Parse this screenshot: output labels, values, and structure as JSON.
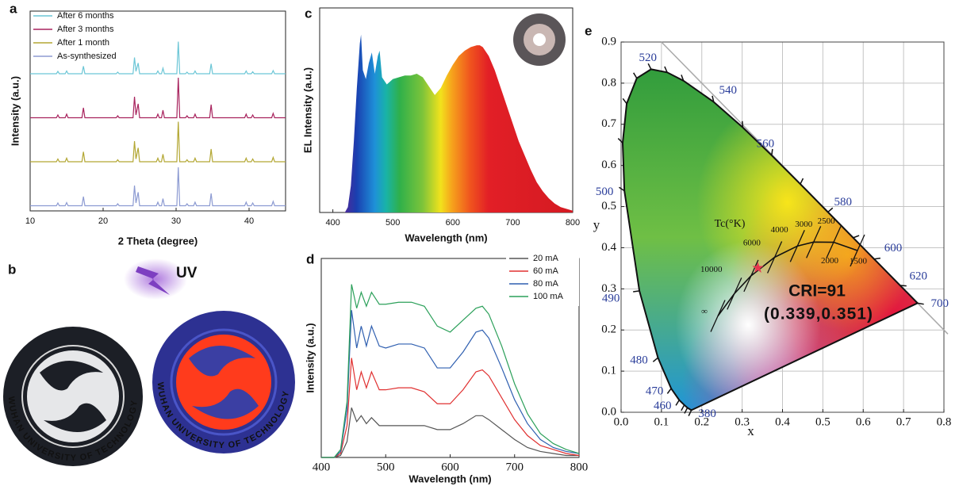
{
  "photo": {
    "label": "b",
    "uv": "UV",
    "logo_text": "WUHAN UNIVERSITY OF TECHNOLOGY"
  },
  "chart_data": [
    {
      "type": "line",
      "panel": "a",
      "offset_series": true,
      "xlabel": "2 Theta (degree)",
      "ylabel": "Intensity (a.u.)",
      "xlim": [
        10,
        45
      ],
      "xticks": [
        10,
        20,
        30,
        40
      ],
      "x": [
        10,
        13.6,
        13.8,
        14.0,
        14.8,
        15.0,
        15.2,
        17.1,
        17.3,
        17.5,
        21.8,
        22.0,
        22.2,
        24.1,
        24.3,
        24.5,
        24.8,
        25.0,
        27.3,
        27.5,
        27.7,
        28.0,
        28.2,
        28.4,
        30.1,
        30.3,
        30.5,
        31.3,
        31.5,
        31.7,
        32.4,
        32.6,
        32.8,
        34.6,
        34.8,
        35.0,
        39.4,
        39.6,
        39.8,
        40.3,
        40.5,
        40.7,
        43.1,
        43.3,
        43.5,
        45
      ],
      "series": [
        {
          "name": "After 6 months",
          "color": "#6cc6d6",
          "values": [
            3,
            3,
            9,
            3,
            3,
            10,
            3,
            3,
            22,
            3,
            3,
            7,
            3,
            3,
            44,
            9,
            30,
            3,
            3,
            10,
            3,
            3,
            17,
            3,
            3,
            84,
            3,
            3,
            7,
            3,
            3,
            10,
            3,
            3,
            28,
            3,
            3,
            10,
            3,
            3,
            8,
            3,
            3,
            11,
            3,
            3
          ]
        },
        {
          "name": "After 3 months",
          "color": "#a8245e",
          "values": [
            3,
            3,
            10,
            3,
            3,
            12,
            3,
            3,
            28,
            3,
            3,
            8,
            3,
            3,
            56,
            10,
            38,
            3,
            3,
            12,
            3,
            3,
            22,
            3,
            3,
            104,
            3,
            3,
            8,
            3,
            3,
            12,
            3,
            3,
            36,
            3,
            3,
            12,
            3,
            3,
            10,
            3,
            3,
            14,
            3,
            3
          ]
        },
        {
          "name": "After 1 month",
          "color": "#b3a733",
          "values": [
            3,
            3,
            10,
            3,
            3,
            12,
            3,
            3,
            28,
            3,
            3,
            8,
            3,
            3,
            55,
            10,
            38,
            3,
            3,
            12,
            3,
            3,
            22,
            3,
            3,
            104,
            3,
            3,
            8,
            3,
            3,
            12,
            3,
            3,
            35,
            3,
            3,
            12,
            3,
            3,
            10,
            3,
            3,
            14,
            3,
            3
          ]
        },
        {
          "name": "As-synthesized",
          "color": "#8d9bd2",
          "values": [
            3,
            3,
            10,
            3,
            3,
            11,
            3,
            3,
            26,
            3,
            3,
            8,
            3,
            3,
            54,
            10,
            37,
            3,
            3,
            12,
            3,
            3,
            21,
            3,
            3,
            100,
            3,
            3,
            8,
            3,
            3,
            12,
            3,
            3,
            34,
            3,
            3,
            12,
            3,
            3,
            10,
            3,
            3,
            14,
            3,
            3
          ]
        }
      ]
    },
    {
      "type": "area",
      "panel": "c",
      "xlabel": "Wavelength (nm)",
      "ylabel": "EL Intensity (a.u.)",
      "xlim": [
        378,
        800
      ],
      "xticks": [
        400,
        500,
        600,
        700,
        800
      ],
      "ylim": [
        0,
        115
      ],
      "x": [
        420,
        425,
        430,
        435,
        440,
        445,
        447,
        450,
        455,
        460,
        465,
        470,
        475,
        478,
        482,
        490,
        500,
        510,
        520,
        530,
        540,
        550,
        560,
        570,
        580,
        590,
        600,
        610,
        620,
        630,
        640,
        645,
        650,
        660,
        670,
        680,
        690,
        700,
        710,
        720,
        730,
        740,
        750,
        760,
        770,
        780,
        790,
        800
      ],
      "values": [
        0,
        3,
        15,
        40,
        70,
        95,
        100,
        80,
        75,
        84,
        90,
        78,
        88,
        91,
        76,
        72,
        75,
        76,
        77,
        77,
        78,
        76,
        71,
        66,
        70,
        77,
        83,
        88,
        91,
        93,
        94,
        94,
        93,
        88,
        80,
        70,
        60,
        50,
        40,
        32,
        24,
        17,
        12,
        8,
        5,
        3,
        2,
        1
      ]
    },
    {
      "type": "line",
      "panel": "d",
      "xlabel": "Wavelength (nm)",
      "ylabel": "Intensity (a.u.)",
      "xlim": [
        400,
        800
      ],
      "xticks": [
        400,
        500,
        600,
        700,
        800
      ],
      "ylim": [
        0,
        100
      ],
      "legend": "upper right",
      "x": [
        400,
        420,
        430,
        440,
        447,
        455,
        462,
        470,
        478,
        490,
        500,
        520,
        540,
        560,
        580,
        600,
        620,
        640,
        650,
        660,
        680,
        700,
        720,
        740,
        760,
        780,
        800
      ],
      "series": [
        {
          "name": "20 mA",
          "color": "#555555",
          "values": [
            0,
            0,
            1,
            8,
            25,
            18,
            21,
            17,
            20,
            16,
            16,
            16,
            16,
            16,
            14,
            14,
            17,
            21,
            21,
            19,
            14,
            9,
            5,
            3,
            2,
            1,
            1
          ]
        },
        {
          "name": "60 mA",
          "color": "#e03030",
          "values": [
            0,
            0,
            2,
            16,
            50,
            34,
            43,
            35,
            43,
            34,
            34,
            35,
            35,
            33,
            27,
            27,
            34,
            43,
            44,
            41,
            30,
            19,
            11,
            6,
            4,
            2,
            1
          ]
        },
        {
          "name": "80 mA",
          "color": "#2f5fb0",
          "values": [
            0,
            0,
            3,
            24,
            74,
            55,
            66,
            56,
            66,
            56,
            55,
            57,
            57,
            55,
            45,
            45,
            53,
            63,
            64,
            60,
            45,
            29,
            17,
            9,
            5,
            3,
            2
          ]
        },
        {
          "name": "100 mA",
          "color": "#2ca05a",
          "values": [
            0,
            0,
            4,
            28,
            87,
            75,
            83,
            76,
            83,
            77,
            77,
            78,
            78,
            76,
            66,
            63,
            69,
            75,
            76,
            72,
            56,
            37,
            22,
            12,
            7,
            4,
            2
          ]
        }
      ]
    },
    {
      "type": "chromaticity",
      "panel": "e",
      "xlabel": "x",
      "ylabel": "y",
      "grid": true,
      "xlim": [
        0,
        0.8
      ],
      "ylim": [
        0,
        0.9
      ],
      "xticks": [
        {
          "value": 0,
          "label": "0.0"
        },
        0.1,
        0.2,
        0.3,
        0.4,
        0.5,
        0.6,
        0.7,
        0.8
      ],
      "yticks": [
        {
          "value": 0,
          "label": "0.0"
        },
        0.1,
        0.2,
        0.3,
        0.4,
        0.5,
        0.6,
        0.7,
        0.8,
        0.9
      ],
      "spectral_locus": {
        "labels": [
          380,
          null,
          null,
          460,
          470,
          480,
          490,
          500,
          null,
          null,
          null,
          520,
          null,
          null,
          540,
          null,
          560,
          null,
          580,
          null,
          600,
          620,
          700
        ],
        "x": [
          0.1741,
          0.1644,
          0.1566,
          0.144,
          0.1241,
          0.0913,
          0.0454,
          0.0082,
          0.0039,
          0.0139,
          0.0389,
          0.0743,
          0.1142,
          0.1547,
          0.2296,
          0.3016,
          0.3731,
          0.4441,
          0.5125,
          0.5752,
          0.627,
          0.6915,
          0.7347
        ],
        "y": [
          0.005,
          0.0109,
          0.0177,
          0.0297,
          0.0578,
          0.1327,
          0.295,
          0.5384,
          0.6548,
          0.7502,
          0.812,
          0.8338,
          0.8262,
          0.8059,
          0.7543,
          0.6923,
          0.6245,
          0.5547,
          0.4866,
          0.4242,
          0.3725,
          0.3083,
          0.2653
        ]
      },
      "planckian_locus": {
        "title": "Tc(°K)",
        "labels": [
          "∞",
          "10000",
          "6000",
          "4000",
          "3000",
          "2500",
          "2000",
          "1500"
        ],
        "x": [
          0.2399,
          0.2807,
          0.3221,
          0.3805,
          0.4369,
          0.477,
          0.5267,
          0.5857
        ],
        "y": [
          0.2342,
          0.2884,
          0.3318,
          0.3768,
          0.4041,
          0.4137,
          0.4133,
          0.3931
        ]
      },
      "point": {
        "x": 0.339,
        "y": 0.351,
        "color": "#e8384f"
      },
      "annotations": [
        "CRI=91",
        "(0.339,0.351)"
      ]
    }
  ]
}
